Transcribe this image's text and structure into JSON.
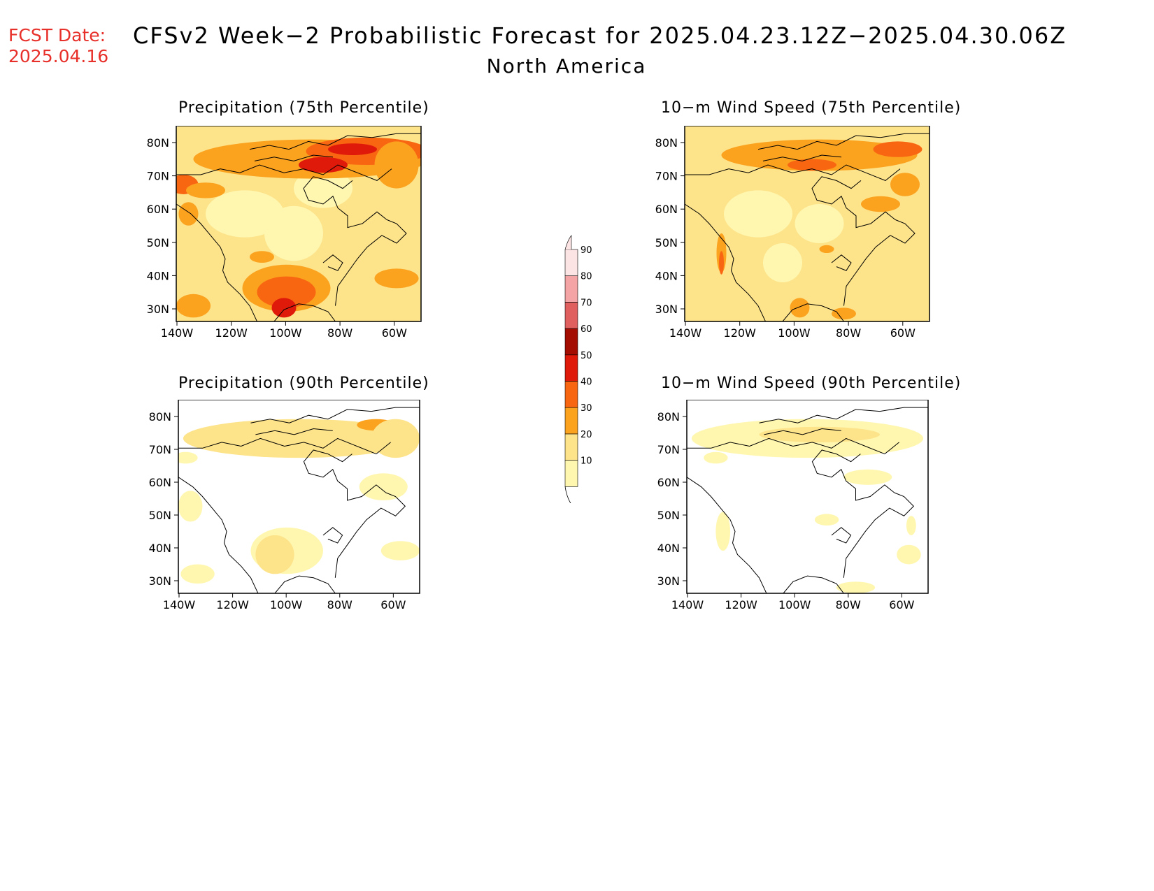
{
  "header": {
    "fcst_label": "FCST Date:",
    "fcst_date": "2025.04.16",
    "title": "CFSv2 Week−2 Probabilistic Forecast for 2025.04.23.12Z−2025.04.30.06Z",
    "subtitle": "North America"
  },
  "colors": {
    "fcst_text": "#e8302a",
    "levels": [
      "#fff7b0",
      "#fde38a",
      "#fba21f",
      "#f96612",
      "#e01a0a",
      "#a30d02",
      "#e06060",
      "#f4a4a4",
      "#fde4e4"
    ],
    "coast": "#000000"
  },
  "colorbar": {
    "ticks": [
      "10",
      "20",
      "30",
      "40",
      "50",
      "60",
      "70",
      "80",
      "90"
    ]
  },
  "axes": {
    "lat_labels": [
      "80N",
      "70N",
      "60N",
      "50N",
      "40N",
      "30N"
    ],
    "lon_labels": [
      "140W",
      "120W",
      "100W",
      "80W",
      "60W"
    ]
  },
  "panels": [
    {
      "id": "precip75",
      "title": "Precipitation (75th Percentile)"
    },
    {
      "id": "wind75",
      "title": "10−m Wind Speed (75th Percentile)"
    },
    {
      "id": "precip90",
      "title": "Precipitation (90th Percentile)"
    },
    {
      "id": "wind90",
      "title": "10−m Wind Speed (90th Percentile)"
    }
  ]
}
